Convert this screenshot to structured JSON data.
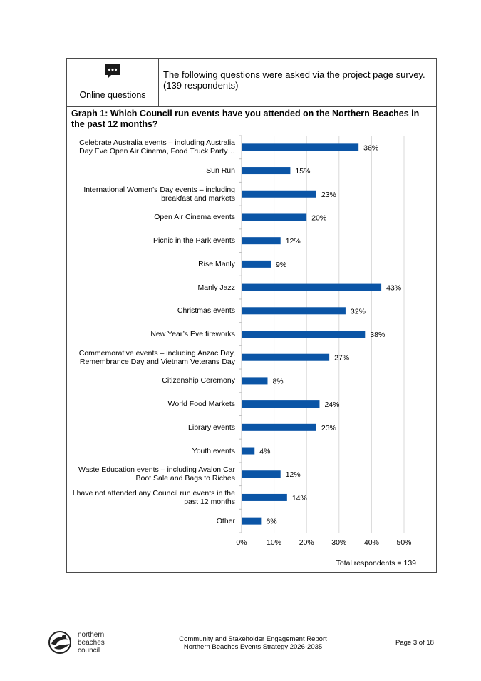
{
  "header": {
    "online_label": "Online questions",
    "intro": "The following questions were asked via the project page survey. (139 respondents)"
  },
  "chart_data": {
    "type": "bar",
    "orientation": "horizontal",
    "title": "Graph 1: Which Council run events have you attended on the Northern Beaches in the past 12 months?",
    "categories": [
      "Celebrate Australia events – including Australia Day Eve Open Air Cinema, Food Truck Party…",
      "Sun Run",
      "International Women’s Day events – including breakfast and markets",
      "Open Air Cinema events",
      "Picnic in the Park events",
      "Rise Manly",
      "Manly Jazz",
      "Christmas events",
      "New Year’s Eve fireworks",
      "Commemorative events – including Anzac Day, Remembrance Day and Vietnam Veterans Day",
      "Citizenship Ceremony",
      "World Food Markets",
      "Library events",
      "Youth events",
      "Waste Education events – including Avalon Car Boot Sale and Bags to Riches",
      "I have not attended any Council run events in the past 12 months",
      "Other"
    ],
    "values": [
      36,
      15,
      23,
      20,
      12,
      9,
      43,
      32,
      38,
      27,
      8,
      24,
      23,
      4,
      12,
      14,
      6
    ],
    "value_labels": [
      "36%",
      "15%",
      "23%",
      "20%",
      "12%",
      "9%",
      "43%",
      "32%",
      "38%",
      "27%",
      "8%",
      "24%",
      "23%",
      "4%",
      "12%",
      "14%",
      "6%"
    ],
    "xlim": [
      0,
      50
    ],
    "xticks": [
      "0%",
      "10%",
      "20%",
      "30%",
      "40%",
      "50%"
    ],
    "grid": true,
    "bar_color": "#0b55a6",
    "note": "Total respondents = 139"
  },
  "footer": {
    "logo_line1": "northern",
    "logo_line2": "beaches",
    "logo_line3": "council",
    "report_line1": "Community and Stakeholder Engagement Report",
    "report_line2": "Northern Beaches Events Strategy 2026-2035",
    "page": "Page 3 of 18"
  }
}
